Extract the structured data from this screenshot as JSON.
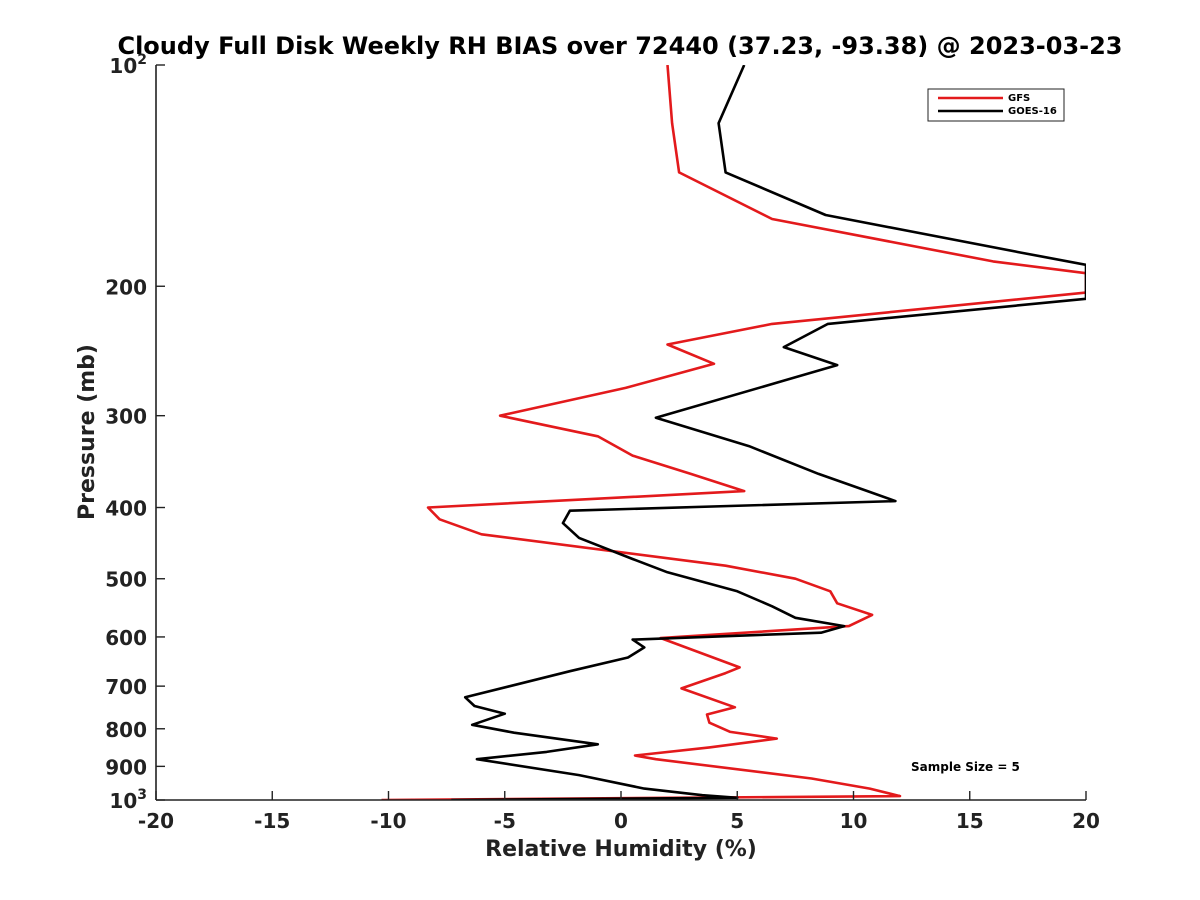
{
  "chart_data": {
    "type": "line",
    "title": "Cloudy Full Disk Weekly RH BIAS over 72440 (37.23, -93.38) @ 2023-03-23",
    "xlabel": "Relative Humidity (%)",
    "ylabel": "Pressure (mb)",
    "xlim": [
      -20,
      20
    ],
    "ylim": [
      100,
      1000
    ],
    "y_scale": "log",
    "y_reversed": true,
    "grid": false,
    "legend_position": "top-right",
    "x_ticks": [
      "-20",
      "-15",
      "-10",
      "-5",
      "0",
      "5",
      "10",
      "15",
      "20"
    ],
    "y_ticks": [
      {
        "value": 100,
        "base": "10",
        "exp": "2"
      },
      {
        "value": 200,
        "label": "200"
      },
      {
        "value": 300,
        "label": "300"
      },
      {
        "value": 400,
        "label": "400"
      },
      {
        "value": 500,
        "label": "500"
      },
      {
        "value": 600,
        "label": "600"
      },
      {
        "value": 700,
        "label": "700"
      },
      {
        "value": 800,
        "label": "800"
      },
      {
        "value": 900,
        "label": "900"
      },
      {
        "value": 1000,
        "base": "10",
        "exp": "3"
      }
    ],
    "annotation": "Sample Size = 5",
    "series": [
      {
        "name": "GFS",
        "color": "#e31a1c",
        "points": [
          [
            2.0,
            100
          ],
          [
            2.2,
            120
          ],
          [
            2.5,
            140
          ],
          [
            6.5,
            162
          ],
          [
            16,
            185
          ],
          [
            20,
            192
          ],
          [
            20,
            204
          ],
          [
            6.5,
            225
          ],
          [
            2,
            240
          ],
          [
            4,
            255
          ],
          [
            0.2,
            275
          ],
          [
            -5.2,
            300
          ],
          [
            -1,
            320
          ],
          [
            0.5,
            340
          ],
          [
            3,
            360
          ],
          [
            5.3,
            380
          ],
          [
            -8.3,
            400
          ],
          [
            -7.8,
            415
          ],
          [
            -6,
            435
          ],
          [
            4.5,
            480
          ],
          [
            7.5,
            500
          ],
          [
            9.0,
            520
          ],
          [
            9.3,
            540
          ],
          [
            10.8,
            560
          ],
          [
            9.8,
            580
          ],
          [
            1.7,
            602
          ],
          [
            5.1,
            660
          ],
          [
            4.5,
            672
          ],
          [
            2.6,
            705
          ],
          [
            4.9,
            748
          ],
          [
            3.7,
            765
          ],
          [
            3.8,
            785
          ],
          [
            4.7,
            808
          ],
          [
            6.7,
            825
          ],
          [
            3.8,
            848
          ],
          [
            0.6,
            870
          ],
          [
            1.5,
            880
          ],
          [
            8.2,
            935
          ],
          [
            10.7,
            965
          ],
          [
            12.0,
            988
          ],
          [
            -10.3,
            1000
          ]
        ]
      },
      {
        "name": "GOES-16",
        "color": "#000000",
        "points": [
          [
            5.3,
            100
          ],
          [
            4.2,
            120
          ],
          [
            4.5,
            140
          ],
          [
            8.8,
            160
          ],
          [
            17.2,
            180
          ],
          [
            20,
            187
          ],
          [
            20,
            208
          ],
          [
            8.9,
            225
          ],
          [
            7.0,
            242
          ],
          [
            9.3,
            256
          ],
          [
            1.5,
            302
          ],
          [
            5.5,
            330
          ],
          [
            8.5,
            360
          ],
          [
            10.6,
            380
          ],
          [
            11.8,
            392
          ],
          [
            -2.2,
            404
          ],
          [
            -2.5,
            420
          ],
          [
            -1.8,
            440
          ],
          [
            0.5,
            470
          ],
          [
            2.0,
            490
          ],
          [
            5.0,
            520
          ],
          [
            6.5,
            545
          ],
          [
            7.5,
            565
          ],
          [
            9.6,
            580
          ],
          [
            8.6,
            592
          ],
          [
            0.5,
            605
          ],
          [
            1.0,
            620
          ],
          [
            0.3,
            640
          ],
          [
            -2.2,
            668
          ],
          [
            -6.7,
            725
          ],
          [
            -6.3,
            745
          ],
          [
            -5.0,
            763
          ],
          [
            -6.4,
            790
          ],
          [
            -4.6,
            810
          ],
          [
            -1,
            840
          ],
          [
            -3.2,
            860
          ],
          [
            -6.2,
            880
          ],
          [
            -1.8,
            925
          ],
          [
            1.0,
            965
          ],
          [
            3.5,
            985
          ],
          [
            5.0,
            993
          ],
          [
            -7.3,
            1000
          ]
        ]
      }
    ]
  }
}
